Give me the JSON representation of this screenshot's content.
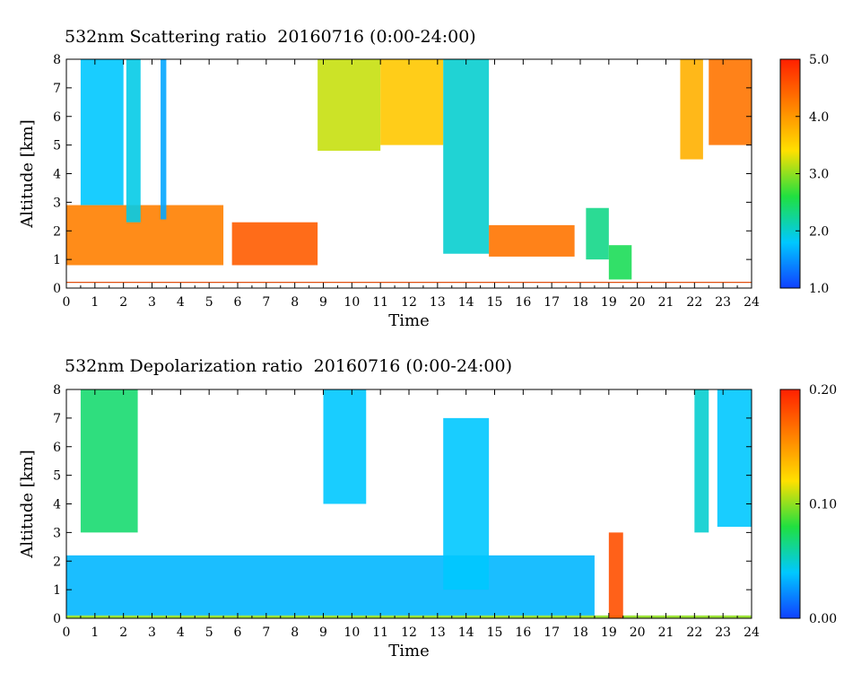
{
  "chart_data": [
    {
      "type": "heatmap",
      "title": "532nm Scattering ratio  20160716 (0:00-24:00)",
      "xlabel": "Time",
      "ylabel": "Altitude [km]",
      "xlim": [
        0,
        24
      ],
      "ylim": [
        0,
        8
      ],
      "x_ticks": [
        "0",
        "1",
        "2",
        "3",
        "4",
        "5",
        "6",
        "7",
        "8",
        "9",
        "10",
        "11",
        "12",
        "13",
        "14",
        "15",
        "16",
        "17",
        "18",
        "19",
        "20",
        "21",
        "22",
        "23",
        "24"
      ],
      "y_ticks": [
        "0",
        "1",
        "2",
        "3",
        "4",
        "5",
        "6",
        "7",
        "8"
      ],
      "colorbar": {
        "range": [
          1.0,
          5.0
        ],
        "tick_labels": [
          "1.0",
          "2.0",
          "3.0",
          "4.0",
          "5.0"
        ],
        "colors": [
          "#1040ff",
          "#00c8ff",
          "#20e040",
          "#ffe000",
          "#ff8000",
          "#ff2000"
        ]
      },
      "ground_line_altitude_km": 0.2,
      "features": [
        {
          "start": 0.0,
          "end": 5.5,
          "bottom": 0.8,
          "top": 2.9,
          "value": 4.2
        },
        {
          "start": 0.5,
          "end": 2.0,
          "bottom": 2.9,
          "top": 8.0,
          "value": 1.8
        },
        {
          "start": 2.1,
          "end": 2.6,
          "bottom": 2.3,
          "top": 8.0,
          "value": 1.9
        },
        {
          "start": 3.3,
          "end": 3.5,
          "bottom": 2.4,
          "top": 8.0,
          "value": 1.6
        },
        {
          "start": 5.8,
          "end": 8.8,
          "bottom": 0.8,
          "top": 2.3,
          "value": 4.5
        },
        {
          "start": 8.8,
          "end": 11.0,
          "bottom": 4.8,
          "top": 8.0,
          "value": 3.2
        },
        {
          "start": 11.0,
          "end": 13.2,
          "bottom": 5.0,
          "top": 8.0,
          "value": 3.6
        },
        {
          "start": 13.2,
          "end": 14.8,
          "bottom": 1.2,
          "top": 8.0,
          "value": 2.0
        },
        {
          "start": 14.8,
          "end": 17.8,
          "bottom": 1.1,
          "top": 2.2,
          "value": 4.3
        },
        {
          "start": 18.2,
          "end": 19.0,
          "bottom": 1.0,
          "top": 2.8,
          "value": 2.3
        },
        {
          "start": 19.0,
          "end": 19.8,
          "bottom": 0.3,
          "top": 1.5,
          "value": 2.5
        },
        {
          "start": 21.5,
          "end": 22.3,
          "bottom": 4.5,
          "top": 8.0,
          "value": 3.8
        },
        {
          "start": 22.5,
          "end": 24.0,
          "bottom": 5.0,
          "top": 8.0,
          "value": 4.3
        }
      ]
    },
    {
      "type": "heatmap",
      "title": "532nm Depolarization ratio  20160716 (0:00-24:00)",
      "xlabel": "Time",
      "ylabel": "Altitude [km]",
      "xlim": [
        0,
        24
      ],
      "ylim": [
        0,
        8
      ],
      "x_ticks": [
        "0",
        "1",
        "2",
        "3",
        "4",
        "5",
        "6",
        "7",
        "8",
        "9",
        "10",
        "11",
        "12",
        "13",
        "14",
        "15",
        "16",
        "17",
        "18",
        "19",
        "20",
        "21",
        "22",
        "23",
        "24"
      ],
      "y_ticks": [
        "0",
        "1",
        "2",
        "3",
        "4",
        "5",
        "6",
        "7",
        "8"
      ],
      "colorbar": {
        "range": [
          0.0,
          0.2
        ],
        "tick_labels": [
          "0.00",
          "0.10",
          "0.20"
        ],
        "colors": [
          "#1040ff",
          "#00c8ff",
          "#20e040",
          "#ffe000",
          "#ff8000",
          "#ff2000"
        ]
      },
      "features": [
        {
          "start": 0.0,
          "end": 24.0,
          "bottom": 0.0,
          "top": 0.1,
          "value": 0.1
        },
        {
          "start": 0.0,
          "end": 18.5,
          "bottom": 0.1,
          "top": 2.2,
          "value": 0.035
        },
        {
          "start": 0.5,
          "end": 2.5,
          "bottom": 3.0,
          "top": 8.0,
          "value": 0.07
        },
        {
          "start": 9.0,
          "end": 10.5,
          "bottom": 4.0,
          "top": 8.0,
          "value": 0.04
        },
        {
          "start": 13.2,
          "end": 14.8,
          "bottom": 1.0,
          "top": 7.0,
          "value": 0.04
        },
        {
          "start": 19.0,
          "end": 19.5,
          "bottom": 0.0,
          "top": 3.0,
          "value": 0.18
        },
        {
          "start": 22.0,
          "end": 22.5,
          "bottom": 3.0,
          "top": 8.0,
          "value": 0.05
        },
        {
          "start": 22.8,
          "end": 24.0,
          "bottom": 3.2,
          "top": 8.0,
          "value": 0.04
        }
      ]
    }
  ]
}
